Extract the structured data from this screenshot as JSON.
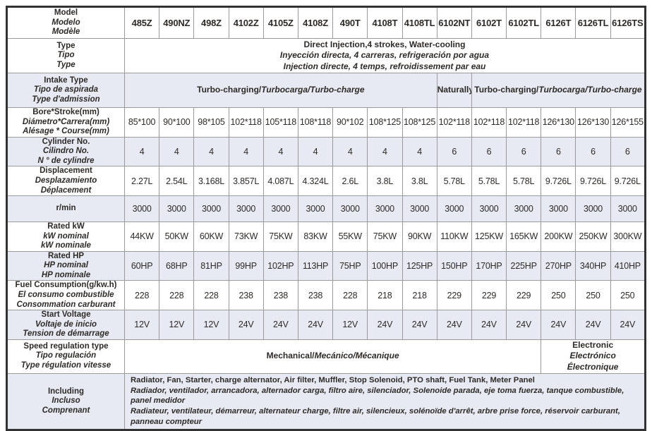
{
  "colors": {
    "row_shade": "#e8eaf3",
    "grid_line": "#9a9a9a",
    "frame": "#323232",
    "text": "#2d2a28"
  },
  "table": {
    "models": [
      "485Z",
      "490NZ",
      "498Z",
      "4102Z",
      "4105Z",
      "4108Z",
      "490T",
      "4108T",
      "4108TL",
      "6102NT",
      "6102T",
      "6102TL",
      "6126T",
      "6126TL",
      "6126TS"
    ],
    "rows": [
      {
        "id": "model",
        "shaded": false,
        "label": [
          "Model",
          "Modelo",
          "Modèle"
        ],
        "use_models": true
      },
      {
        "id": "type",
        "shaded": false,
        "label": [
          "Type",
          "Tipo",
          "Type"
        ],
        "cells": [
          {
            "colspan": 15,
            "lines": [
              [
                {
                  "t": "Direct Injection,4 strokes, Water-cooling",
                  "s": "b"
                }
              ],
              [
                {
                  "t": "Inyección directa, 4 carreras, refrigeración por agua",
                  "s": "bi"
                }
              ],
              [
                {
                  "t": "Injection directe, 4 temps, refroidissement par eau",
                  "s": "bi"
                }
              ]
            ]
          }
        ]
      },
      {
        "id": "intake-type",
        "shaded": true,
        "label": [
          "Intake Type",
          "Tipo de aspirada",
          "Type d'admission"
        ],
        "cells": [
          {
            "colspan": 9,
            "lines": [
              [
                {
                  "t": "Turbo-charging/",
                  "s": "b"
                },
                {
                  "t": "Turbocarga/Turbo-charge",
                  "s": "bi"
                }
              ]
            ]
          },
          {
            "colspan": 1,
            "lines": [
              [
                {
                  "t": "Naturally",
                  "s": "b"
                }
              ]
            ]
          },
          {
            "colspan": 5,
            "lines": [
              [
                {
                  "t": "Turbo-charging/",
                  "s": "b"
                },
                {
                  "t": "Turbocarga/Turbo-charge",
                  "s": "bi"
                }
              ]
            ]
          }
        ]
      },
      {
        "id": "bore-stroke",
        "shaded": false,
        "label": [
          "Bore*Stroke(mm)",
          "Diámetro*Carrera(mm)",
          "Alésage * Course(mm)"
        ],
        "values": [
          "85*100",
          "90*100",
          "98*105",
          "102*118",
          "105*118",
          "108*118",
          "90*102",
          "108*125",
          "108*125",
          "102*118",
          "102*118",
          "102*118",
          "126*130",
          "126*130",
          "126*155"
        ]
      },
      {
        "id": "cylinder-no",
        "shaded": true,
        "label": [
          "Cylinder No.",
          "Cilindro No.",
          "N ° de cylindre"
        ],
        "values": [
          "4",
          "4",
          "4",
          "4",
          "4",
          "4",
          "4",
          "4",
          "4",
          "6",
          "6",
          "6",
          "6",
          "6",
          "6"
        ]
      },
      {
        "id": "displacement",
        "shaded": false,
        "label": [
          "Displacement",
          "Desplazamiento",
          "Déplacement"
        ],
        "values": [
          "2.27L",
          "2.54L",
          "3.168L",
          "3.857L",
          "4.087L",
          "4.324L",
          "2.6L",
          "3.8L",
          "3.8L",
          "5.78L",
          "5.78L",
          "5.78L",
          "9.726L",
          "9.726L",
          "9.726L"
        ]
      },
      {
        "id": "rpm",
        "shaded": true,
        "label": [
          "r/min"
        ],
        "values": [
          "3000",
          "3000",
          "3000",
          "3000",
          "3000",
          "3000",
          "3000",
          "3000",
          "3000",
          "3000",
          "3000",
          "3000",
          "3000",
          "3000",
          "3000"
        ]
      },
      {
        "id": "rated-kw",
        "shaded": false,
        "label": [
          "Rated kW",
          "kW nominal",
          "kW nominale"
        ],
        "values": [
          "44KW",
          "50KW",
          "60KW",
          "73KW",
          "75KW",
          "83KW",
          "55KW",
          "75KW",
          "90KW",
          "110KW",
          "125KW",
          "165KW",
          "200KW",
          "250KW",
          "300KW"
        ]
      },
      {
        "id": "rated-hp",
        "shaded": true,
        "label": [
          "Rated HP",
          "HP nominal",
          "HP nominale"
        ],
        "values": [
          "60HP",
          "68HP",
          "81HP",
          "99HP",
          "102HP",
          "113HP",
          "75HP",
          "100HP",
          "125HP",
          "150HP",
          "170HP",
          "225HP",
          "270HP",
          "340HP",
          "410HP"
        ]
      },
      {
        "id": "fuel-consumption",
        "shaded": false,
        "label": [
          "Fuel Consumption(g/kw.h)",
          "El consumo combustible",
          "Consommation carburant"
        ],
        "values": [
          "228",
          "228",
          "228",
          "238",
          "238",
          "238",
          "228",
          "218",
          "218",
          "229",
          "229",
          "229",
          "250",
          "250",
          "250"
        ]
      },
      {
        "id": "start-voltage",
        "shaded": true,
        "label": [
          "Start Voltage",
          "Voltaje de inicio",
          "Tension de démarrage"
        ],
        "values": [
          "12V",
          "12V",
          "12V",
          "24V",
          "24V",
          "24V",
          "12V",
          "24V",
          "24V",
          "24V",
          "24V",
          "24V",
          "24V",
          "24V",
          "24V"
        ]
      },
      {
        "id": "speed-regulation",
        "shaded": false,
        "label": [
          "Speed regulation type",
          "Tipo regulación",
          "Type régulation vitesse"
        ],
        "cells": [
          {
            "colspan": 12,
            "lines": [
              [
                {
                  "t": "Mechanical/",
                  "s": "b"
                },
                {
                  "t": "Mecánico/Mécanique",
                  "s": "bi"
                }
              ]
            ]
          },
          {
            "colspan": 3,
            "lines": [
              [
                {
                  "t": "Electronic",
                  "s": "b"
                }
              ],
              [
                {
                  "t": "Electrónico",
                  "s": "bi"
                }
              ],
              [
                {
                  "t": "Électronique",
                  "s": "bi"
                }
              ]
            ]
          }
        ]
      },
      {
        "id": "including",
        "shaded": true,
        "label": [
          "Including",
          "Incluso",
          "Comprenant"
        ],
        "cells": [
          {
            "colspan": 15,
            "align": "left",
            "lines": [
              [
                {
                  "t": "Radiator, Fan, Starter, charge alternator, Air filter, Muffler, Stop Solenoid, PTO shaft, Fuel Tank, Meter Panel",
                  "s": "b"
                }
              ],
              [
                {
                  "t": "Radiador, ventilador, arrancadora, alternador carga, filtro aire, silenciador, Solenoide parada, eje toma fuerza, tanque combustible, panel medidor",
                  "s": "bi"
                }
              ],
              [
                {
                  "t": "Radiateur, ventilateur, démarreur, alternateur charge, filtre air, silencieux, solénoïde d'arrêt, arbre prise force, réservoir carburant, panneau compteur",
                  "s": "bi"
                }
              ]
            ]
          }
        ]
      }
    ]
  }
}
